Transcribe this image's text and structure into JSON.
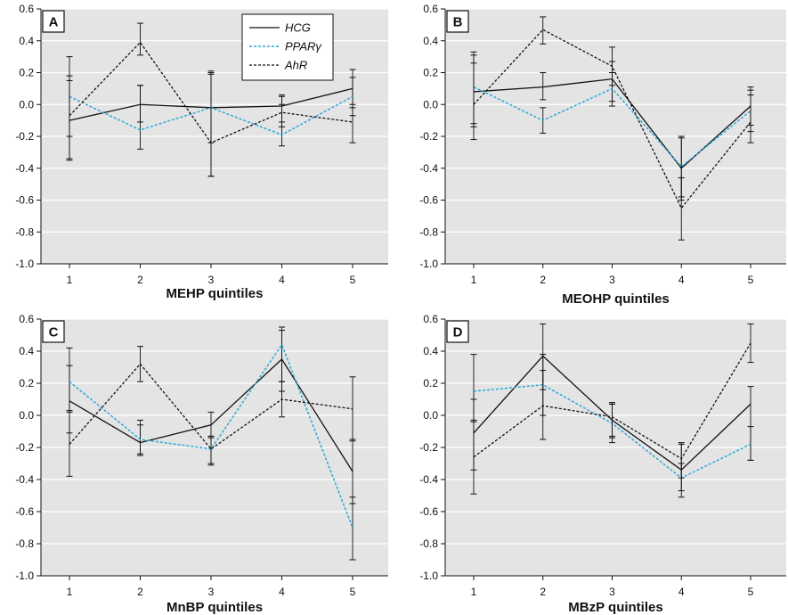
{
  "legend": {
    "entries": [
      {
        "label": "HCG",
        "color": "#111111",
        "dash": "solid"
      },
      {
        "label": "PPARγ",
        "color": "#29a8d8",
        "dash": "dotted"
      },
      {
        "label": "AhR",
        "color": "#111111",
        "dash": "dotted"
      }
    ]
  },
  "chart_data": [
    {
      "type": "line",
      "panel": "A",
      "xlabel": "MEHP quintiles",
      "ylabel": "",
      "x": [
        1,
        2,
        3,
        4,
        5
      ],
      "ylim": [
        -1.0,
        0.6
      ],
      "yticks": [
        "0.6",
        "0.4",
        "0.2",
        "0.0",
        "-0.2",
        "-0.4",
        "-0.6",
        "-0.8",
        "-1.0"
      ],
      "xticks": [
        "1",
        "2",
        "3",
        "4",
        "5"
      ],
      "grid": true,
      "legend_position": "top-center",
      "series": [
        {
          "name": "HCG",
          "values": [
            -0.1,
            0.0,
            -0.02,
            -0.01,
            0.1
          ],
          "err_low": [
            -0.34,
            -0.28,
            -0.45,
            -0.11,
            -0.02
          ],
          "err_high": [
            0.15,
            0.12,
            0.2,
            0.06,
            0.22
          ]
        },
        {
          "name": "PPARγ",
          "values": [
            0.05,
            -0.16,
            -0.02,
            -0.19,
            0.05
          ],
          "err_low": [
            -0.2,
            -0.11,
            -0.24,
            -0.26,
            -0.07
          ],
          "err_high": [
            0.18,
            0.12,
            0.19,
            0.0,
            0.17
          ]
        },
        {
          "name": "AhR",
          "values": [
            -0.07,
            0.39,
            -0.24,
            -0.05,
            -0.11
          ],
          "err_low": [
            -0.35,
            0.31,
            -0.45,
            -0.14,
            -0.24
          ],
          "err_high": [
            0.3,
            0.51,
            0.21,
            0.05,
            0.0
          ]
        }
      ]
    },
    {
      "type": "line",
      "panel": "B",
      "xlabel": "MEOHP quintiles",
      "ylabel": "",
      "x": [
        1,
        2,
        3,
        4,
        5
      ],
      "ylim": [
        -1.0,
        0.6
      ],
      "yticks": [
        "0.6",
        "0.4",
        "0.2",
        "0.0",
        "-0.2",
        "-0.4",
        "-0.6",
        "-0.8",
        "-1.0"
      ],
      "xticks": [
        "1",
        "2",
        "3",
        "4",
        "5"
      ],
      "grid": true,
      "series": [
        {
          "name": "HCG",
          "values": [
            0.08,
            0.11,
            0.16,
            -0.4,
            -0.01
          ],
          "err_low": [
            -0.12,
            0.03,
            0.02,
            -0.6,
            -0.13
          ],
          "err_high": [
            0.31,
            0.2,
            0.27,
            -0.2,
            0.11
          ]
        },
        {
          "name": "PPARγ",
          "values": [
            0.11,
            -0.1,
            0.1,
            -0.39,
            -0.04
          ],
          "err_low": [
            -0.14,
            -0.18,
            -0.01,
            -0.58,
            -0.17
          ],
          "err_high": [
            0.26,
            -0.02,
            0.2,
            -0.21,
            0.09
          ]
        },
        {
          "name": "AhR",
          "values": [
            0.0,
            0.47,
            0.24,
            -0.65,
            -0.11
          ],
          "err_low": [
            -0.22,
            0.38,
            0.12,
            -0.85,
            -0.24
          ],
          "err_high": [
            0.33,
            0.55,
            0.36,
            -0.46,
            0.06
          ]
        }
      ]
    },
    {
      "type": "line",
      "panel": "C",
      "xlabel": "MnBP quintiles",
      "ylabel": "",
      "x": [
        1,
        2,
        3,
        4,
        5
      ],
      "ylim": [
        -1.0,
        0.6
      ],
      "yticks": [
        "0.6",
        "0.4",
        "0.2",
        "0.0",
        "-0.2",
        "-0.4",
        "-0.6",
        "-0.8",
        "-1.0"
      ],
      "xticks": [
        "1",
        "2",
        "3",
        "4",
        "5"
      ],
      "grid": true,
      "series": [
        {
          "name": "HCG",
          "values": [
            0.09,
            -0.17,
            -0.06,
            0.35,
            -0.35
          ],
          "err_low": [
            -0.11,
            -0.24,
            -0.14,
            0.15,
            -0.55
          ],
          "err_high": [
            0.31,
            -0.03,
            0.02,
            0.55,
            -0.15
          ]
        },
        {
          "name": "PPARγ",
          "values": [
            0.21,
            -0.15,
            -0.21,
            0.44,
            -0.7
          ],
          "err_low": [
            0.02,
            -0.25,
            -0.3,
            0.21,
            -0.9
          ],
          "err_high": [
            0.42,
            -0.06,
            -0.13,
            0.53,
            -0.51
          ]
        },
        {
          "name": "AhR",
          "values": [
            -0.18,
            0.32,
            -0.21,
            0.1,
            0.04
          ],
          "err_low": [
            -0.38,
            0.21,
            -0.31,
            -0.01,
            -0.16
          ],
          "err_high": [
            0.03,
            0.43,
            -0.13,
            0.21,
            0.24
          ]
        }
      ]
    },
    {
      "type": "line",
      "panel": "D",
      "xlabel": "MBzP quintiles",
      "ylabel": "",
      "x": [
        1,
        2,
        3,
        4,
        5
      ],
      "ylim": [
        -1.0,
        0.6
      ],
      "yticks": [
        "0.6",
        "0.4",
        "0.2",
        "0.0",
        "-0.2",
        "-0.4",
        "-0.6",
        "-0.8",
        "-1.0"
      ],
      "xticks": [
        "1",
        "2",
        "3",
        "4",
        "5"
      ],
      "grid": true,
      "series": [
        {
          "name": "HCG",
          "values": [
            -0.11,
            0.37,
            -0.03,
            -0.34,
            0.07
          ],
          "err_low": [
            -0.34,
            0.16,
            -0.14,
            -0.51,
            -0.28
          ],
          "err_high": [
            0.1,
            0.57,
            0.08,
            -0.17,
            0.18
          ]
        },
        {
          "name": "PPARγ",
          "values": [
            0.15,
            0.19,
            -0.05,
            -0.39,
            -0.18
          ],
          "err_low": [
            -0.04,
            0.0,
            -0.13,
            -0.47,
            -0.28
          ],
          "err_high": [
            0.38,
            0.38,
            0.07,
            -0.3,
            -0.07
          ]
        },
        {
          "name": "AhR",
          "values": [
            -0.26,
            0.06,
            -0.01,
            -0.27,
            0.45
          ],
          "err_low": [
            -0.49,
            -0.15,
            -0.17,
            -0.39,
            0.33
          ],
          "err_high": [
            -0.03,
            0.28,
            0.07,
            -0.18,
            0.57
          ]
        }
      ]
    }
  ]
}
